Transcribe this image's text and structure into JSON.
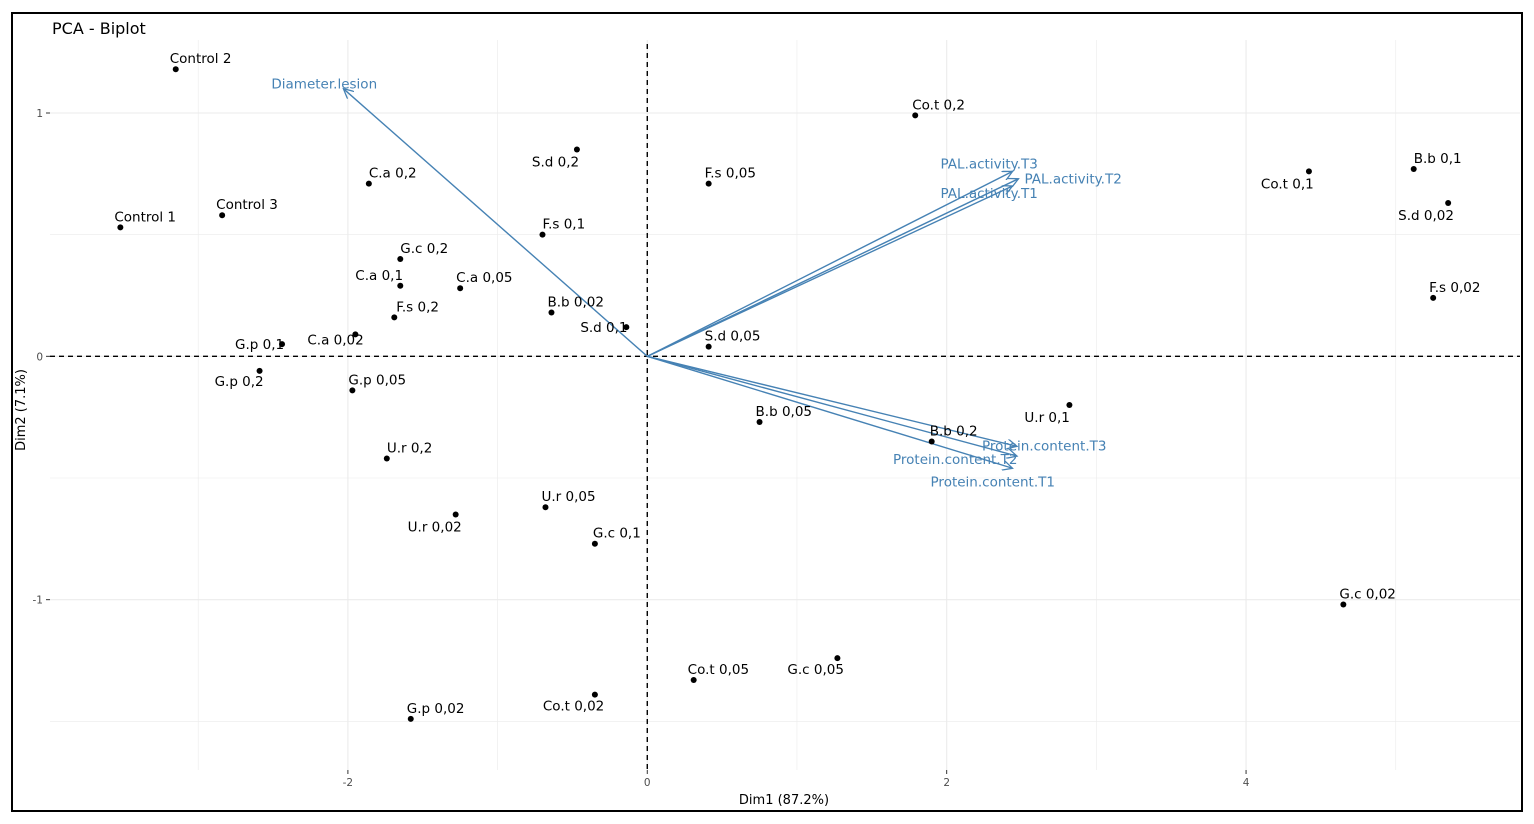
{
  "chart_data": {
    "type": "scatter",
    "title": "PCA - Biplot",
    "xlabel": "Dim1 (87.2%)",
    "ylabel": "Dim2 (7.1%)",
    "xlim": [
      -3.99,
      5.83
    ],
    "ylim": [
      -1.7,
      1.3
    ],
    "xticks": [
      -2,
      0,
      2,
      4
    ],
    "yticks": [
      -1,
      0,
      1
    ],
    "xtick_labels": [
      "-2",
      "0",
      "2",
      "4"
    ],
    "ytick_labels": [
      "-1",
      "0",
      "1"
    ],
    "grid": true,
    "colors": {
      "points": "#000000",
      "arrows": "#4682b4",
      "grid": "#ebebeb",
      "refline": "#000000"
    },
    "points": [
      {
        "label": "Control 2",
        "x": -3.15,
        "y": 1.18
      },
      {
        "label": "Control 1",
        "x": -3.52,
        "y": 0.53
      },
      {
        "label": "Control 3",
        "x": -2.84,
        "y": 0.58
      },
      {
        "label": "C.a 0,2",
        "x": -1.86,
        "y": 0.71
      },
      {
        "label": "G.c 0,2",
        "x": -1.65,
        "y": 0.4
      },
      {
        "label": "C.a 0,1",
        "x": -1.65,
        "y": 0.29
      },
      {
        "label": "C.a 0,05",
        "x": -1.25,
        "y": 0.28
      },
      {
        "label": "F.s 0,2",
        "x": -1.69,
        "y": 0.16
      },
      {
        "label": "C.a 0,02",
        "x": -1.95,
        "y": 0.09
      },
      {
        "label": "G.p 0,1",
        "x": -2.44,
        "y": 0.05
      },
      {
        "label": "G.p 0,2",
        "x": -2.59,
        "y": -0.06
      },
      {
        "label": "G.p 0,05",
        "x": -1.97,
        "y": -0.14
      },
      {
        "label": "U.r 0,2",
        "x": -1.74,
        "y": -0.42
      },
      {
        "label": "U.r 0,02",
        "x": -1.28,
        "y": -0.65
      },
      {
        "label": "G.p 0,02",
        "x": -1.58,
        "y": -1.49
      },
      {
        "label": "S.d 0,2",
        "x": -0.47,
        "y": 0.85
      },
      {
        "label": "F.s 0,1",
        "x": -0.7,
        "y": 0.5
      },
      {
        "label": "B.b 0,02",
        "x": -0.64,
        "y": 0.18
      },
      {
        "label": "S.d 0,1",
        "x": -0.14,
        "y": 0.12
      },
      {
        "label": "U.r 0,05",
        "x": -0.68,
        "y": -0.62
      },
      {
        "label": "G.c 0,1",
        "x": -0.35,
        "y": -0.77
      },
      {
        "label": "Co.t 0,02",
        "x": -0.35,
        "y": -1.39
      },
      {
        "label": "Co.t 0,05",
        "x": 0.31,
        "y": -1.33
      },
      {
        "label": "G.c 0,05",
        "x": 1.27,
        "y": -1.24
      },
      {
        "label": "F.s 0,05",
        "x": 0.41,
        "y": 0.71
      },
      {
        "label": "S.d 0,05",
        "x": 0.41,
        "y": 0.04
      },
      {
        "label": "B.b 0,05",
        "x": 0.75,
        "y": -0.27
      },
      {
        "label": "Co.t 0,2",
        "x": 1.79,
        "y": 0.99
      },
      {
        "label": "B.b 0,2",
        "x": 1.9,
        "y": -0.35
      },
      {
        "label": "U.r 0,1",
        "x": 2.82,
        "y": -0.2
      },
      {
        "label": "Co.t 0,1",
        "x": 4.42,
        "y": 0.76
      },
      {
        "label": "B.b 0,1",
        "x": 5.12,
        "y": 0.77
      },
      {
        "label": "S.d 0,02",
        "x": 5.35,
        "y": 0.63
      },
      {
        "label": "F.s 0,02",
        "x": 5.25,
        "y": 0.24
      },
      {
        "label": "G.c 0,02",
        "x": 4.65,
        "y": -1.02
      }
    ],
    "variables": [
      {
        "label": "Diameter.lesion",
        "x": -2.03,
        "y": 1.1
      },
      {
        "label": "PAL.activity.T3",
        "x": 2.44,
        "y": 0.76
      },
      {
        "label": "PAL.activity.T2",
        "x": 2.48,
        "y": 0.73
      },
      {
        "label": "PAL.activity.T1",
        "x": 2.44,
        "y": 0.7
      },
      {
        "label": "Protein.content.T3",
        "x": 2.47,
        "y": -0.37
      },
      {
        "label": "Protein.content.T2",
        "x": 2.47,
        "y": -0.41
      },
      {
        "label": "Protein.content.T1",
        "x": 2.44,
        "y": -0.46
      }
    ]
  }
}
